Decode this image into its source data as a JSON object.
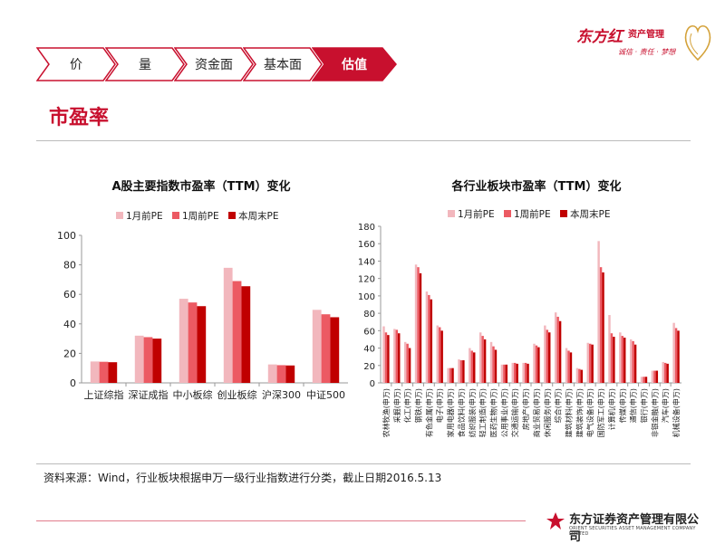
{
  "brand": {
    "name": "东方红",
    "sub": "资产管理",
    "slogan": "诚信 · 责任 · 梦想"
  },
  "nav": {
    "items": [
      {
        "label": "价",
        "active": false
      },
      {
        "label": "量",
        "active": false
      },
      {
        "label": "资金面",
        "active": false
      },
      {
        "label": "基本面",
        "active": false
      },
      {
        "label": "估值",
        "active": true
      }
    ]
  },
  "page": {
    "title": "市盈率",
    "source": "资料来源：Wind，行业板块根据申万一级行业指数进行分类，截止日期2016.5.13"
  },
  "footer": {
    "company": "东方证券资产管理有限公司",
    "company_en": "ORIENT SECURITIES ASSET MANAGEMENT COMPANY LIMITED"
  },
  "colors": {
    "accent": "#c8102e",
    "series1": "#f2b7bd",
    "series2": "#ec5a63",
    "series3": "#c00000"
  },
  "chart_data": [
    {
      "type": "bar",
      "title": "A股主要指数市盈率（TTM）变化",
      "categories": [
        "上证综指",
        "深证成指",
        "中小板综",
        "创业板综",
        "沪深300",
        "中证500"
      ],
      "series": [
        {
          "name": "1月前PE",
          "values": [
            14.5,
            32.0,
            57.0,
            78.0,
            12.5,
            49.5
          ]
        },
        {
          "name": "1周前PE",
          "values": [
            14.3,
            31.0,
            54.5,
            69.0,
            12.0,
            46.5
          ]
        },
        {
          "name": "本周末PE",
          "values": [
            14.0,
            30.0,
            52.0,
            65.5,
            11.8,
            44.5
          ]
        }
      ],
      "ylim": [
        0,
        100
      ],
      "yticks": [
        0,
        20,
        40,
        60,
        80,
        100
      ],
      "legend": "top"
    },
    {
      "type": "bar",
      "title": "各行业板块市盈率（TTM）变化",
      "categories": [
        "农林牧渔(申万)",
        "采掘(申万)",
        "化工(申万)",
        "钢铁(申万)",
        "有色金属(申万)",
        "电子(申万)",
        "家用电器(申万)",
        "食品饮料(申万)",
        "纺织服装(申万)",
        "轻工制造(申万)",
        "医药生物(申万)",
        "公用事业(申万)",
        "交通运输(申万)",
        "房地产(申万)",
        "商业贸易(申万)",
        "休闲服务(申万)",
        "综合(申万)",
        "建筑材料(申万)",
        "建筑装饰(申万)",
        "电气设备(申万)",
        "国防军工(申万)",
        "计算机(申万)",
        "传媒(申万)",
        "通信(申万)",
        "银行(申万)",
        "非银金融(申万)",
        "汽车(申万)",
        "机械设备(申万)"
      ],
      "series": [
        {
          "name": "1月前PE",
          "values": [
            65,
            62,
            47,
            136,
            105,
            66,
            17,
            27,
            40,
            58,
            47,
            21,
            23,
            23,
            45,
            66,
            81,
            40,
            17,
            46,
            163,
            78,
            58,
            50,
            7,
            14,
            24,
            69
          ]
        },
        {
          "name": "1周前PE",
          "values": [
            58,
            61,
            45,
            133,
            101,
            64,
            17,
            26,
            37,
            54,
            42,
            21,
            23,
            23,
            43,
            61,
            76,
            37,
            16,
            45,
            133,
            57,
            54,
            48,
            7,
            14,
            23,
            63
          ]
        },
        {
          "name": "本周末PE",
          "values": [
            55,
            57,
            40,
            126,
            96,
            60,
            17,
            26,
            35,
            50,
            38,
            21,
            22,
            22,
            41,
            58,
            71,
            35,
            15,
            44,
            127,
            53,
            52,
            44,
            7,
            14,
            22,
            60
          ]
        }
      ],
      "ylim": [
        0,
        180
      ],
      "yticks": [
        0,
        20,
        40,
        60,
        80,
        100,
        120,
        140,
        160,
        180
      ],
      "legend": "top"
    }
  ]
}
